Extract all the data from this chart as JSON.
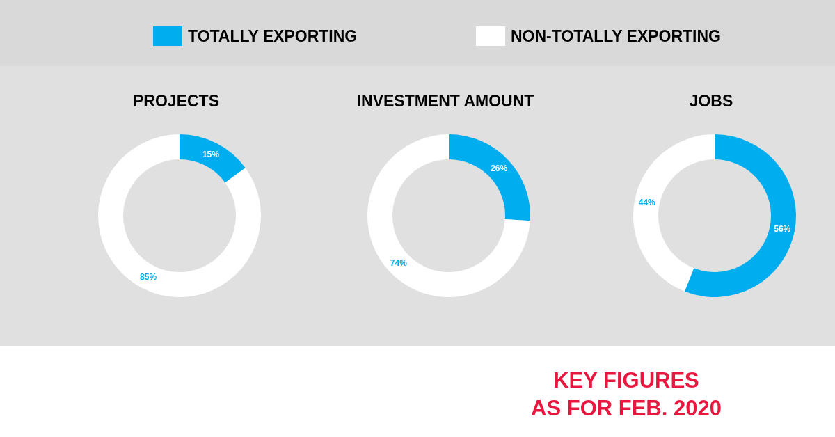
{
  "chart_data": [
    {
      "type": "donut",
      "title": "PROJECTS",
      "categories": [
        "TOTALLY EXPORTING",
        "NON-TOTALLY EXPORTING"
      ],
      "values": [
        15,
        85
      ],
      "colors": [
        "#00aeef",
        "#ffffff"
      ],
      "value_labels": [
        "15%",
        "85%"
      ],
      "legend": "top"
    },
    {
      "type": "donut",
      "title": "INVESTMENT AMOUNT",
      "categories": [
        null,
        null
      ],
      "values": [
        26,
        74
      ],
      "colors": [
        "#00aeef",
        "#ffffff"
      ],
      "value_labels": [
        "26%",
        "74%"
      ]
    },
    {
      "type": "donut",
      "title": "JOBS",
      "categories": [
        null,
        null
      ],
      "values": [
        56,
        44
      ],
      "colors": [
        "#00aeef",
        "#ffffff"
      ],
      "value_labels": [
        "56%",
        "44%"
      ],
      "annotations": [
        "KEY FIGURES\nAS FOR FEB. 2020"
      ]
    }
  ]
}
